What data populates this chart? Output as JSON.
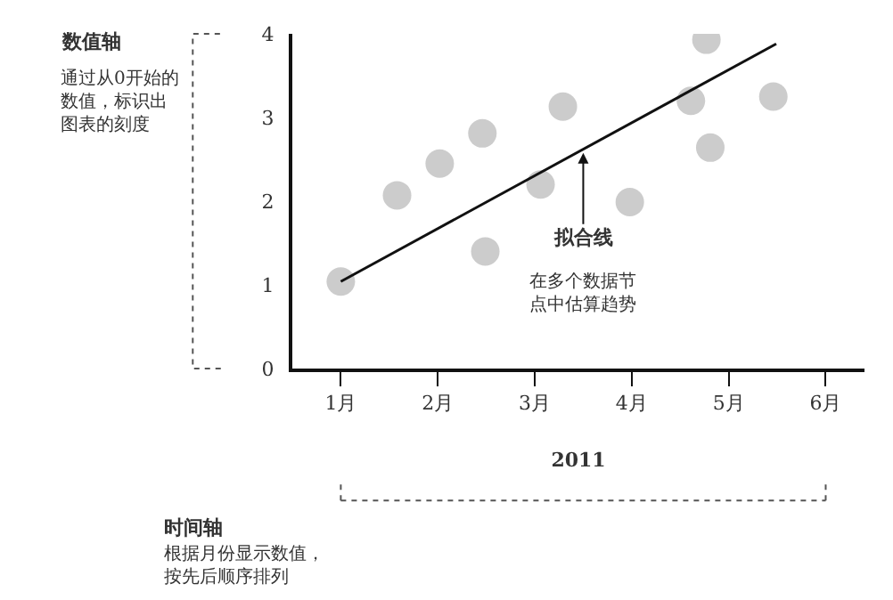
{
  "chart_data": {
    "type": "scatter",
    "xlabel": "2011",
    "x": [
      1.0,
      1.58,
      2.02,
      2.46,
      2.49,
      3.06,
      3.29,
      3.98,
      4.61,
      4.77,
      4.81,
      5.46
    ],
    "series": [
      {
        "color": "#cccccc",
        "marker": "circle",
        "values": [
          1.04,
          2.07,
          2.45,
          2.81,
          1.4,
          2.2,
          3.13,
          1.99,
          3.2,
          3.93,
          2.64,
          3.25
        ]
      },
      {
        "type": "line",
        "color": "#111111",
        "marker": "none",
        "line_style": "solid",
        "x": [
          1.0,
          5.49
        ],
        "values": [
          1.04,
          3.88
        ]
      }
    ],
    "xlim": [
      0.5,
      6.4
    ],
    "ylim": [
      0,
      4
    ],
    "xticks": [
      {
        "value": 1,
        "label": "1月"
      },
      {
        "value": 2,
        "label": "2月"
      },
      {
        "value": 3,
        "label": "3月"
      },
      {
        "value": 4,
        "label": "4月"
      },
      {
        "value": 5,
        "label": "5月"
      },
      {
        "value": 6,
        "label": "6月"
      }
    ],
    "yticks": [
      0,
      1,
      2,
      3,
      4
    ],
    "grid": false,
    "legend": false,
    "annotations": [
      "数值轴",
      "通过从0开始的数值，标识出图表的刻度",
      {
        "text": "拟合线",
        "x": 3.5,
        "y": 2.62
      },
      "在多个数据节点中估算趋势",
      "时间轴",
      "根据月份显示数值，按先后顺序排列"
    ]
  }
}
